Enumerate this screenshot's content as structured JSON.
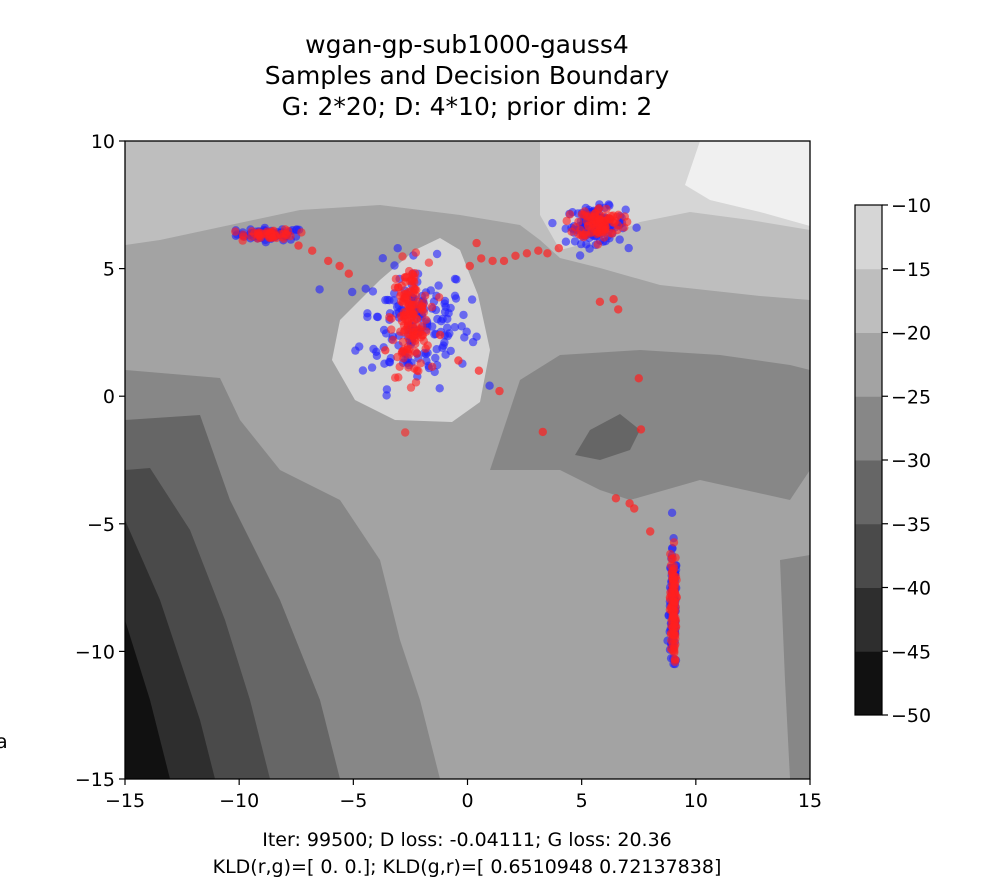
{
  "chart_data": {
    "type": "scatter",
    "title_lines": [
      "wgan-gp-sub1000-gauss4",
      "Samples and Decision Boundary",
      "G: 2*20; D: 4*10; prior dim: 2"
    ],
    "xlim": [
      -15,
      15
    ],
    "ylim": [
      -15,
      10
    ],
    "xticks": [
      -15,
      -10,
      -5,
      0,
      5,
      10,
      15
    ],
    "yticks": [
      -15,
      -10,
      -5,
      0,
      5,
      10
    ],
    "grid": false,
    "contour_levels": [
      -50,
      -45,
      -40,
      -35,
      -30,
      -25,
      -20,
      -15,
      -10
    ],
    "contour_colors": [
      "#111111",
      "#2e2e2e",
      "#4a4a4a",
      "#666666",
      "#878787",
      "#a3a3a3",
      "#bebebe",
      "#d6d6d6",
      "#f0f0f0"
    ],
    "colorbar_ticks": [
      -10,
      -15,
      -20,
      -25,
      -30,
      -35,
      -40,
      -45,
      -50
    ],
    "series": [
      {
        "color": "#2020ff",
        "clusters": [
          {
            "cx": -8.6,
            "cy": 6.35,
            "sx": 0.75,
            "sy": 0.12,
            "n": 60
          },
          {
            "cx": -2.3,
            "cy": 2.8,
            "sx": 1.2,
            "sy": 1.2,
            "n": 160
          },
          {
            "cx": 5.6,
            "cy": 6.7,
            "sx": 0.65,
            "sy": 0.35,
            "n": 110
          },
          {
            "cx": 9.0,
            "cy": -8.5,
            "sx": 0.09,
            "sy": 1.2,
            "n": 110
          }
        ]
      },
      {
        "color": "#ff2020",
        "clusters": [
          {
            "cx": -8.6,
            "cy": 6.35,
            "sx": 0.55,
            "sy": 0.1,
            "n": 45
          },
          {
            "cx": -2.5,
            "cy": 3.0,
            "sx": 0.4,
            "sy": 1.1,
            "n": 150
          },
          {
            "cx": 5.8,
            "cy": 6.8,
            "sx": 0.5,
            "sy": 0.3,
            "n": 90
          },
          {
            "cx": 9.0,
            "cy": -8.3,
            "sx": 0.07,
            "sy": 1.1,
            "n": 100
          }
        ],
        "points": [
          [
            -7.4,
            5.9
          ],
          [
            -6.8,
            5.7
          ],
          [
            -6.1,
            5.3
          ],
          [
            -5.6,
            5.1
          ],
          [
            -5.2,
            4.8
          ],
          [
            0.1,
            5.1
          ],
          [
            0.6,
            5.4
          ],
          [
            1.1,
            5.3
          ],
          [
            1.6,
            5.3
          ],
          [
            2.1,
            5.5
          ],
          [
            2.6,
            5.6
          ],
          [
            3.1,
            5.7
          ],
          [
            3.5,
            5.6
          ],
          [
            4.0,
            5.8
          ],
          [
            0.4,
            6.0
          ],
          [
            6.4,
            3.8
          ],
          [
            5.8,
            3.7
          ],
          [
            6.6,
            3.4
          ],
          [
            -0.4,
            1.4
          ],
          [
            0.5,
            1.0
          ],
          [
            1.4,
            0.2
          ],
          [
            3.3,
            -1.4
          ],
          [
            7.5,
            0.7
          ],
          [
            7.6,
            -1.3
          ],
          [
            6.5,
            -4.0
          ],
          [
            7.1,
            -4.2
          ],
          [
            7.3,
            -4.4
          ],
          [
            8.0,
            -5.3
          ],
          [
            -3.6,
            1.8
          ],
          [
            -1.2,
            2.4
          ]
        ]
      }
    ]
  },
  "footer": {
    "line1": "Iter: 99500; D loss: -0.04111; G loss: 20.36",
    "line2": "KLD(r,g)=[ 0.  0.]; KLD(g,r)=[ 0.6510948   0.72137838]"
  },
  "stray_label": "a"
}
